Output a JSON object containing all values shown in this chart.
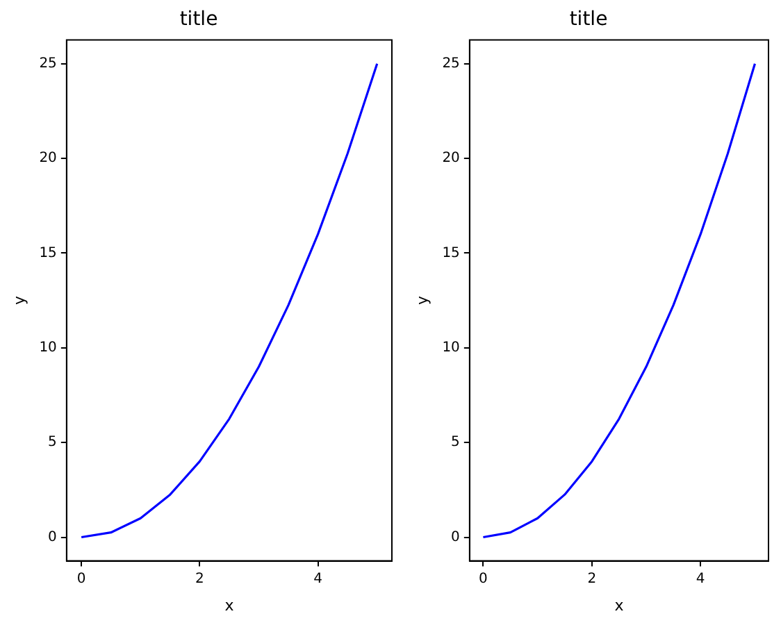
{
  "chart_data": [
    {
      "type": "line",
      "title": "title",
      "xlabel": "x",
      "ylabel": "y",
      "x": [
        0,
        0.5,
        1,
        1.5,
        2,
        2.5,
        3,
        3.5,
        4,
        4.5,
        5
      ],
      "series": [
        {
          "color": "#0000ff",
          "values": [
            0,
            0.25,
            1,
            2.25,
            4,
            6.25,
            9,
            12.25,
            16,
            20.25,
            25
          ]
        }
      ],
      "xlim": [
        -0.25,
        5.25
      ],
      "xticks": [
        0,
        2,
        4
      ],
      "ylim": [
        -1.25,
        26.25
      ],
      "yticks": [
        0,
        5,
        10,
        15,
        20,
        25
      ],
      "grid": false,
      "legend": false,
      "marker": "none",
      "line_style": "solid"
    },
    {
      "type": "line",
      "title": "title",
      "xlabel": "x",
      "ylabel": "y",
      "x": [
        0,
        0.5,
        1,
        1.5,
        2,
        2.5,
        3,
        3.5,
        4,
        4.5,
        5
      ],
      "series": [
        {
          "color": "#0000ff",
          "values": [
            0,
            0.25,
            1,
            2.25,
            4,
            6.25,
            9,
            12.25,
            16,
            20.25,
            25
          ]
        }
      ],
      "xlim": [
        -0.25,
        5.25
      ],
      "xticks": [
        0,
        2,
        4
      ],
      "ylim": [
        -1.25,
        26.25
      ],
      "yticks": [
        0,
        5,
        10,
        15,
        20,
        25
      ],
      "grid": false,
      "legend": false,
      "marker": "none",
      "line_style": "solid"
    }
  ]
}
